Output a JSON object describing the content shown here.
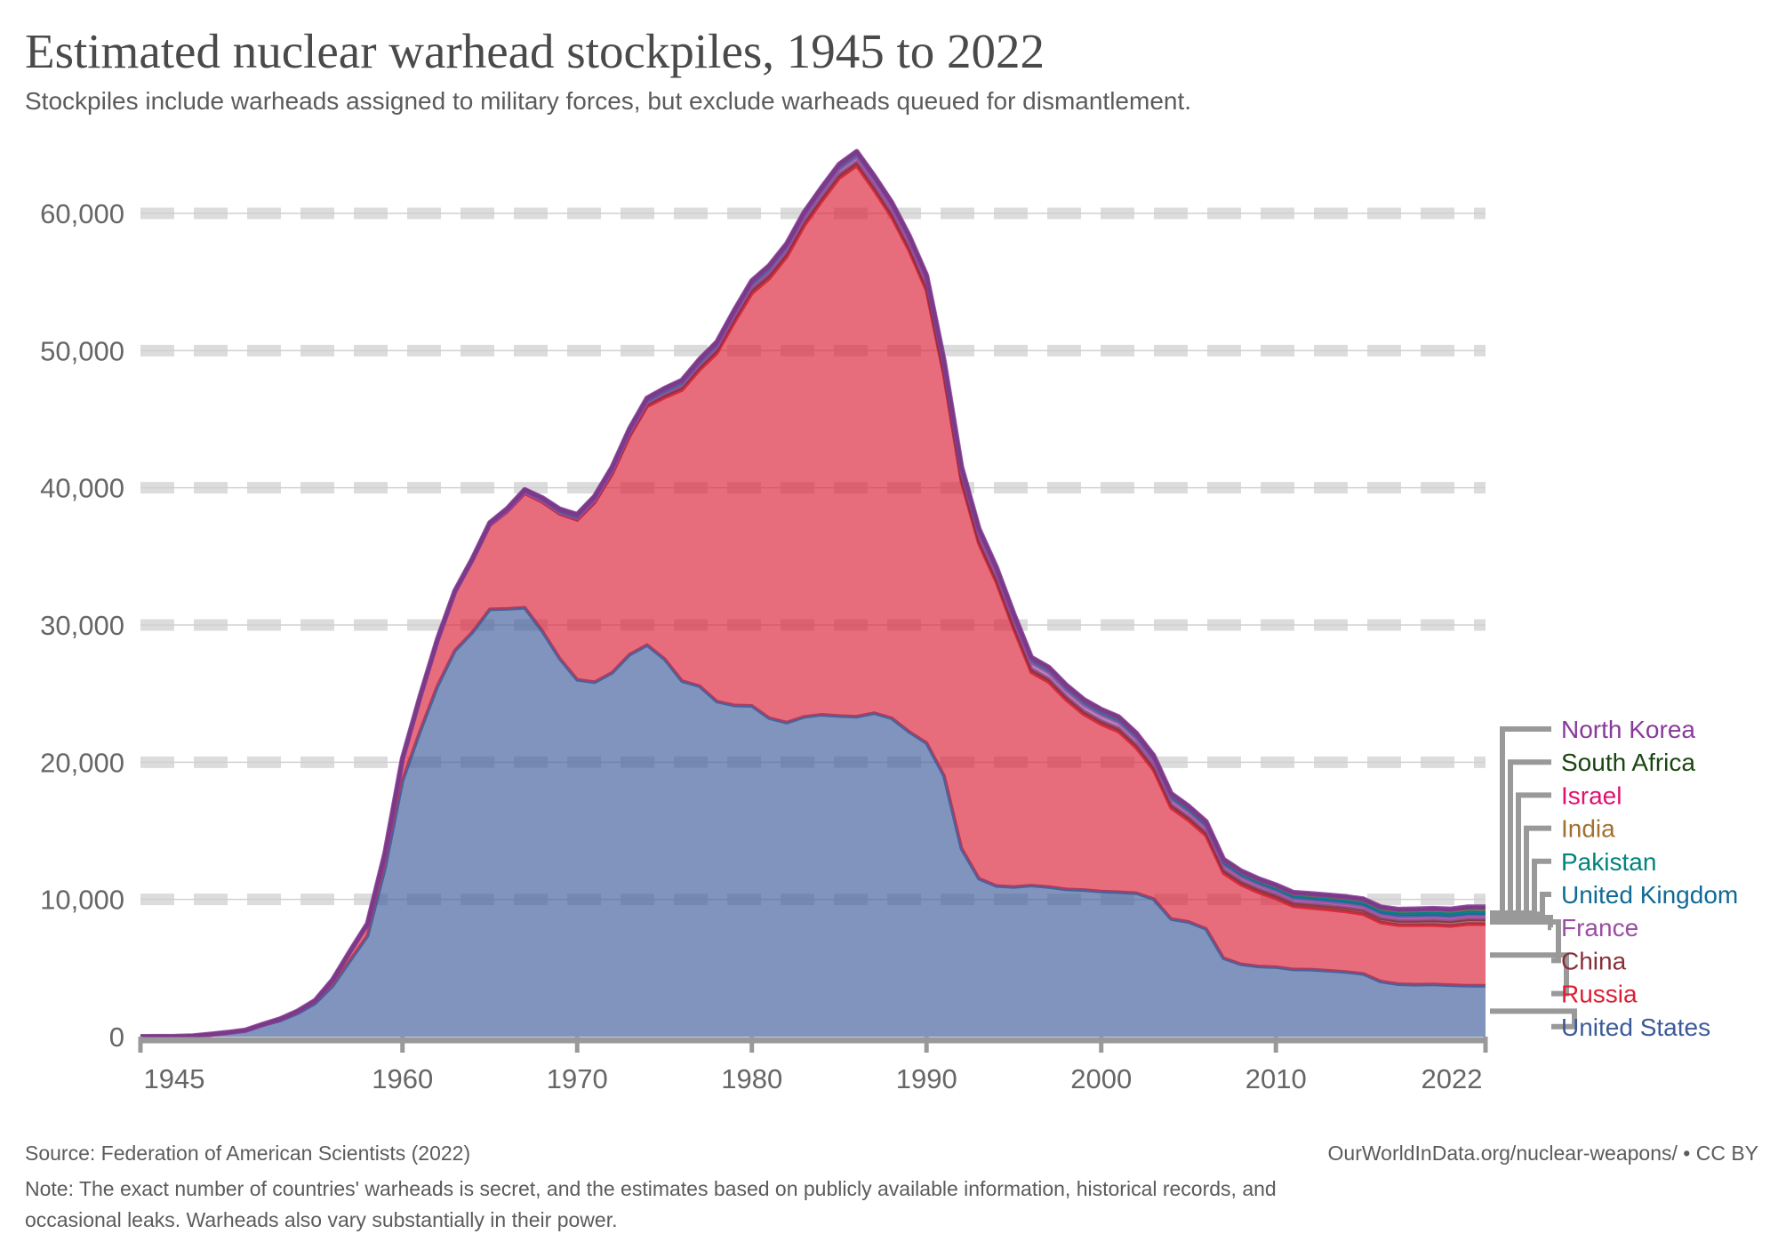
{
  "header": {
    "title": "Estimated nuclear warhead stockpiles, 1945 to 2022",
    "subtitle": "Stockpiles include warheads assigned to military forces, but exclude warheads queued for dismantlement."
  },
  "footer": {
    "source": "Source: Federation of American Scientists (2022)",
    "credit": "OurWorldInData.org/nuclear-weapons/ • CC BY",
    "note_line1": "Note: The exact number of countries' warheads is secret, and the estimates based on publicly available information, historical records, and",
    "note_line2": "occasional leaks. Warheads also vary substantially in their power."
  },
  "chart_data": {
    "type": "area",
    "stacked": true,
    "title": "Estimated nuclear warhead stockpiles, 1945 to 2022",
    "xlim": [
      1945,
      2022
    ],
    "ylim": [
      0,
      65000
    ],
    "x_ticks": [
      "1945",
      "1960",
      "1970",
      "1980",
      "1990",
      "2000",
      "2010",
      "2022"
    ],
    "y_ticks": [
      "0",
      "10,000",
      "20,000",
      "30,000",
      "40,000",
      "50,000",
      "60,000"
    ],
    "y_tick_values": [
      0,
      10000,
      20000,
      30000,
      40000,
      50000,
      60000
    ],
    "x_tick_values": [
      1945,
      1960,
      1970,
      1980,
      1990,
      2000,
      2010,
      2022
    ],
    "grid": "horizontal dashed",
    "legend": "right, labels at series ends",
    "series": [
      {
        "name": "United States",
        "color": "#3c5a99",
        "x": [
          1945,
          1946,
          1947,
          1948,
          1949,
          1950,
          1951,
          1952,
          1953,
          1954,
          1955,
          1956,
          1957,
          1958,
          1959,
          1960,
          1961,
          1962,
          1963,
          1964,
          1965,
          1966,
          1967,
          1968,
          1969,
          1970,
          1971,
          1972,
          1973,
          1974,
          1975,
          1976,
          1977,
          1978,
          1979,
          1980,
          1981,
          1982,
          1983,
          1984,
          1985,
          1986,
          1987,
          1988,
          1989,
          1990,
          1991,
          1992,
          1993,
          1994,
          1995,
          1996,
          1997,
          1998,
          1999,
          2000,
          2001,
          2002,
          2003,
          2004,
          2005,
          2006,
          2007,
          2008,
          2009,
          2010,
          2011,
          2012,
          2013,
          2014,
          2015,
          2016,
          2017,
          2018,
          2019,
          2020,
          2021,
          2022
        ],
        "y": [
          2,
          9,
          13,
          50,
          170,
          299,
          438,
          841,
          1169,
          1703,
          2422,
          3692,
          5543,
          7345,
          12298,
          18638,
          22229,
          25540,
          28133,
          29463,
          31139,
          31175,
          31255,
          29561,
          27552,
          26008,
          25830,
          26516,
          27835,
          28537,
          27519,
          25914,
          25542,
          24418,
          24138,
          24104,
          23208,
          22886,
          23305,
          23459,
          23368,
          23317,
          23575,
          23205,
          22217,
          21392,
          19008,
          13708,
          11511,
          10979,
          10904,
          11011,
          10903,
          10732,
          10685,
          10577,
          10526,
          10457,
          10027,
          8570,
          8360,
          7853,
          5709,
          5273,
          5113,
          5066,
          4897,
          4881,
          4804,
          4717,
          4571,
          4018,
          3822,
          3785,
          3805,
          3750,
          3708,
          3708
        ]
      },
      {
        "name": "Russia",
        "color": "#dc1f35",
        "x": [
          1945,
          1948,
          1949,
          1950,
          1951,
          1952,
          1953,
          1954,
          1955,
          1956,
          1957,
          1958,
          1959,
          1960,
          1961,
          1962,
          1963,
          1964,
          1965,
          1966,
          1967,
          1968,
          1969,
          1970,
          1971,
          1972,
          1973,
          1974,
          1975,
          1976,
          1977,
          1978,
          1979,
          1980,
          1981,
          1982,
          1983,
          1984,
          1985,
          1986,
          1987,
          1988,
          1989,
          1990,
          1991,
          1992,
          1993,
          1994,
          1995,
          1996,
          1997,
          1998,
          1999,
          2000,
          2001,
          2002,
          2003,
          2004,
          2005,
          2006,
          2007,
          2008,
          2009,
          2010,
          2011,
          2012,
          2013,
          2014,
          2015,
          2016,
          2017,
          2018,
          2019,
          2020,
          2021,
          2022
        ],
        "y": [
          0,
          0,
          1,
          5,
          25,
          50,
          120,
          150,
          200,
          426,
          660,
          869,
          1060,
          1605,
          2471,
          3322,
          4238,
          5221,
          6129,
          7089,
          8339,
          9399,
          10538,
          11643,
          13092,
          14478,
          15915,
          17385,
          19055,
          21205,
          23044,
          25393,
          27935,
          30062,
          32049,
          33952,
          35804,
          37431,
          39197,
          40159,
          38107,
          36538,
          35078,
          32980,
          29154,
          26734,
          24403,
          22126,
          18799,
          15540,
          14927,
          13800,
          12800,
          12188,
          11700,
          10600,
          9400,
          8100,
          7400,
          6800,
          6200,
          5800,
          5400,
          5000,
          4600,
          4500,
          4450,
          4400,
          4350,
          4300,
          4300,
          4330,
          4330,
          4310,
          4495,
          4477
        ]
      },
      {
        "name": "China",
        "color": "#883039",
        "x": [
          1945,
          1963,
          1964,
          1970,
          1975,
          1980,
          1990,
          2000,
          2010,
          2020,
          2022
        ],
        "y": [
          0,
          0,
          1,
          75,
          185,
          280,
          232,
          232,
          240,
          350,
          350
        ]
      },
      {
        "name": "France",
        "color": "#9a4ea3",
        "x": [
          1945,
          1963,
          1964,
          1970,
          1980,
          1990,
          2000,
          2010,
          2022
        ],
        "y": [
          0,
          0,
          4,
          36,
          250,
          505,
          470,
          300,
          290
        ]
      },
      {
        "name": "United Kingdom",
        "color": "#0f6a96",
        "x": [
          1945,
          1952,
          1953,
          1960,
          1970,
          1980,
          1990,
          2000,
          2010,
          2022
        ],
        "y": [
          0,
          0,
          1,
          30,
          280,
          350,
          300,
          280,
          225,
          180
        ]
      },
      {
        "name": "Pakistan",
        "color": "#00847e",
        "x": [
          1945,
          1997,
          1998,
          2000,
          2010,
          2022
        ],
        "y": [
          0,
          0,
          5,
          10,
          70,
          165
        ]
      },
      {
        "name": "India",
        "color": "#a2702f",
        "x": [
          1945,
          1973,
          1974,
          1990,
          2000,
          2010,
          2022
        ],
        "y": [
          0,
          0,
          1,
          5,
          10,
          60,
          160
        ]
      },
      {
        "name": "Israel",
        "color": "#e0116f",
        "x": [
          1945,
          1966,
          1967,
          1980,
          2000,
          2022
        ],
        "y": [
          0,
          0,
          2,
          31,
          80,
          90
        ]
      },
      {
        "name": "South Africa",
        "color": "#18470f",
        "x": [
          1945,
          1979,
          1980,
          1990,
          1991,
          2022
        ],
        "y": [
          0,
          0,
          1,
          6,
          0,
          0
        ]
      },
      {
        "name": "North Korea",
        "color": "#883a9a",
        "x": [
          1945,
          2005,
          2006,
          2022
        ],
        "y": [
          0,
          0,
          1,
          20
        ]
      }
    ]
  }
}
